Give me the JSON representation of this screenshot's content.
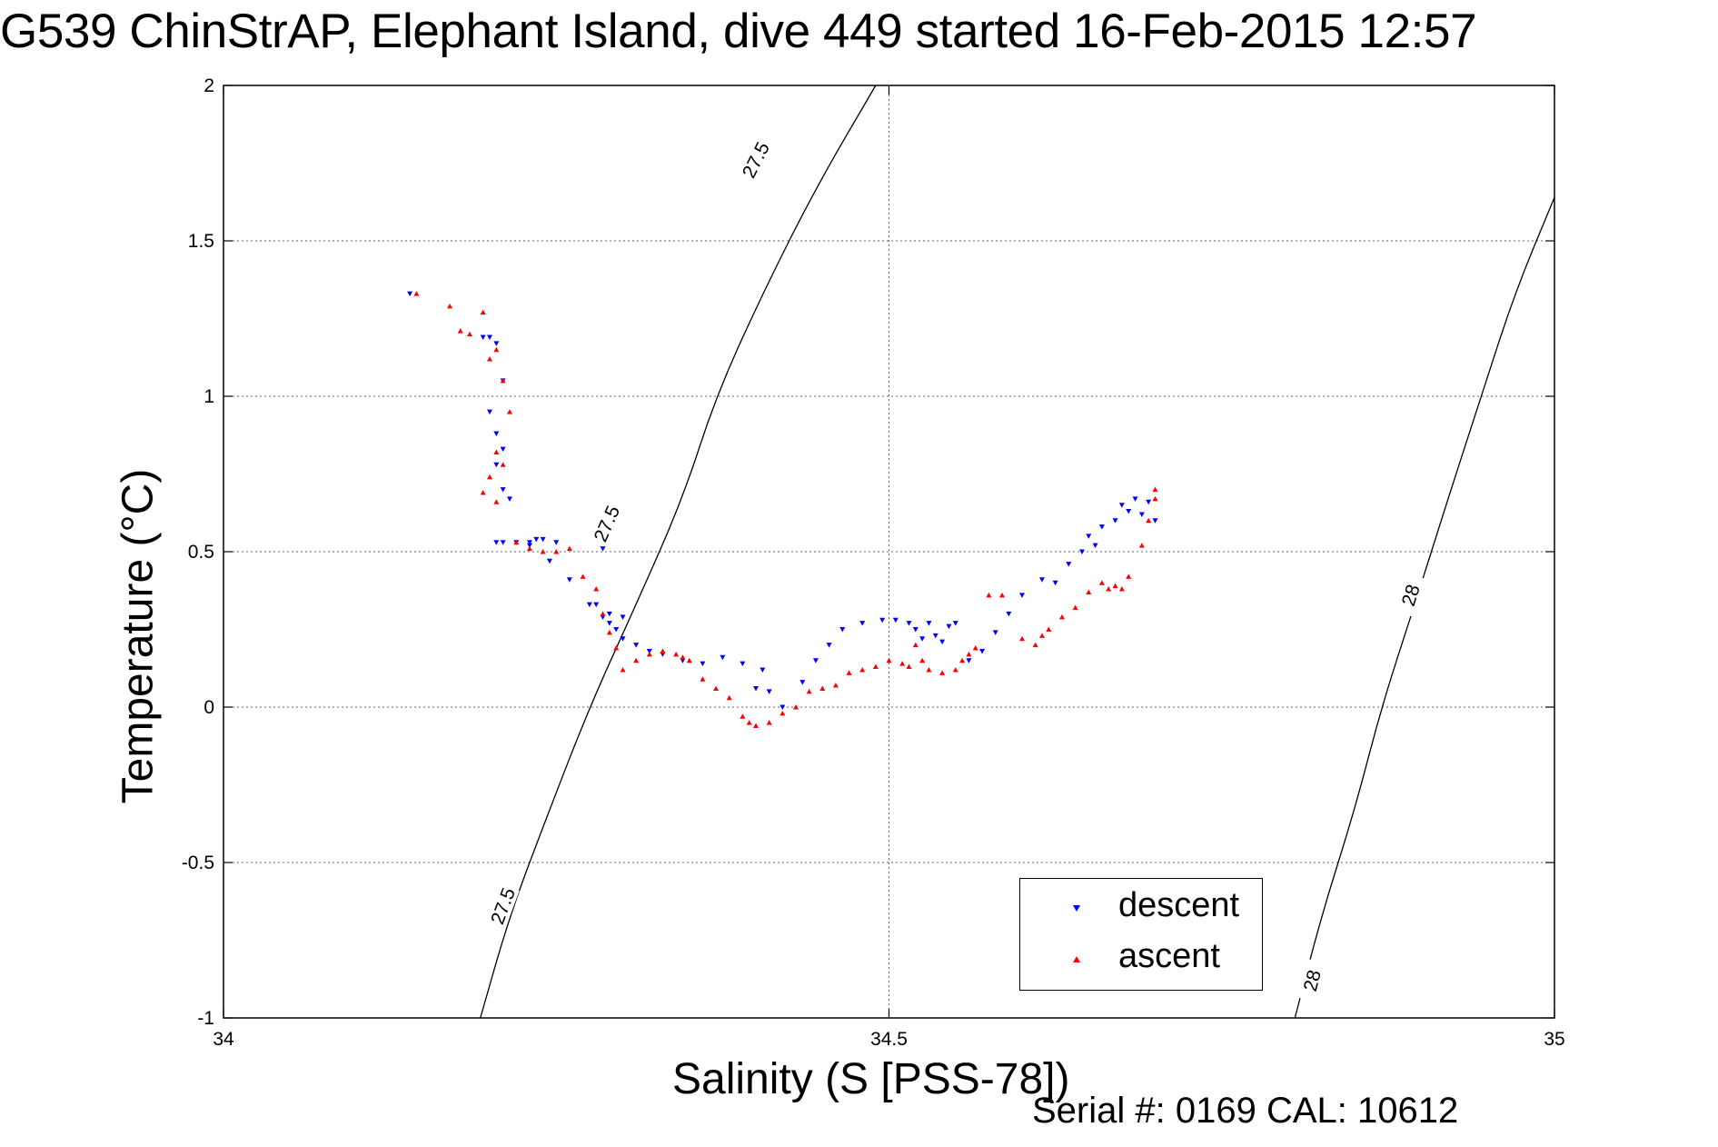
{
  "figure": {
    "title": "G539 ChinStrAP, Elephant Island, dive 449 started 16-Feb-2015 12:57",
    "serial": "Serial #: 0169 CAL: 10612"
  },
  "chart_data": {
    "type": "scatter",
    "xlabel": "Salinity (S [PSS-78])",
    "ylabel": "Temperature (°C)",
    "xlim": [
      34,
      35
    ],
    "ylim": [
      -1,
      2
    ],
    "xticks": [
      34,
      34.5,
      35
    ],
    "xtick_labels": [
      "34",
      "34.5",
      "35"
    ],
    "yticks": [
      -1,
      -0.5,
      0,
      0.5,
      1,
      1.5,
      2
    ],
    "ytick_labels": [
      "-1",
      "-0.5",
      "0",
      "0.5",
      "1",
      "1.5",
      "2"
    ],
    "grid": true,
    "legend_position": "bottom-right",
    "density_contours": [
      {
        "level": "27.5",
        "points": [
          [
            34.193,
            -1.0
          ],
          [
            34.215,
            -0.67
          ],
          [
            34.245,
            -0.33
          ],
          [
            34.275,
            0.0
          ],
          [
            34.31,
            0.33
          ],
          [
            34.345,
            0.67
          ],
          [
            34.37,
            1.0
          ],
          [
            34.405,
            1.33
          ],
          [
            34.445,
            1.67
          ],
          [
            34.49,
            2.0
          ]
        ],
        "labels": [
          {
            "x": 34.21,
            "y": -0.64
          },
          {
            "x": 34.288,
            "y": 0.59
          },
          {
            "x": 34.4,
            "y": 1.76
          }
        ]
      },
      {
        "level": "28",
        "points": [
          [
            34.805,
            -1.0
          ],
          [
            34.825,
            -0.67
          ],
          [
            34.85,
            -0.33
          ],
          [
            34.87,
            0.0
          ],
          [
            34.895,
            0.33
          ],
          [
            34.92,
            0.67
          ],
          [
            34.945,
            1.0
          ],
          [
            34.97,
            1.33
          ],
          [
            35.0,
            1.64
          ]
        ],
        "labels": [
          {
            "x": 34.818,
            "y": -0.88
          },
          {
            "x": 34.892,
            "y": 0.36
          }
        ]
      }
    ],
    "series": [
      {
        "name": "descent",
        "color": "#0000ff",
        "marker": "triangle-down",
        "x": [
          34.14,
          34.195,
          34.2,
          34.205,
          34.21,
          34.2,
          34.205,
          34.21,
          34.205,
          34.21,
          34.215,
          34.21,
          34.23,
          34.235,
          34.24,
          34.25,
          34.285,
          34.205,
          34.22,
          34.23,
          34.245,
          34.26,
          34.275,
          34.29,
          34.3,
          34.28,
          34.285,
          34.29,
          34.295,
          34.3,
          34.31,
          34.32,
          34.33,
          34.345,
          34.36,
          34.375,
          34.39,
          34.405,
          34.41,
          34.4,
          34.42,
          34.435,
          34.445,
          34.455,
          34.465,
          34.48,
          34.495,
          34.505,
          34.515,
          34.52,
          34.525,
          34.53,
          34.535,
          34.54,
          34.545,
          34.55,
          34.56,
          34.57,
          34.58,
          34.59,
          34.6,
          34.615,
          34.625,
          34.635,
          34.645,
          34.65,
          34.655,
          34.66,
          34.67,
          34.675,
          34.68,
          34.685,
          34.69,
          34.695,
          34.7
        ],
        "y": [
          1.33,
          1.19,
          1.19,
          1.17,
          1.05,
          0.95,
          0.88,
          0.83,
          0.78,
          0.7,
          0.67,
          0.53,
          0.53,
          0.54,
          0.54,
          0.53,
          0.51,
          0.53,
          0.53,
          0.52,
          0.47,
          0.41,
          0.33,
          0.3,
          0.29,
          0.33,
          0.29,
          0.27,
          0.25,
          0.22,
          0.2,
          0.18,
          0.17,
          0.15,
          0.14,
          0.16,
          0.14,
          0.12,
          0.05,
          0.06,
          0.0,
          0.08,
          0.15,
          0.2,
          0.25,
          0.27,
          0.28,
          0.28,
          0.27,
          0.25,
          0.22,
          0.27,
          0.23,
          0.21,
          0.26,
          0.27,
          0.15,
          0.18,
          0.24,
          0.3,
          0.36,
          0.41,
          0.4,
          0.46,
          0.5,
          0.55,
          0.52,
          0.58,
          0.6,
          0.65,
          0.63,
          0.67,
          0.62,
          0.66,
          0.6
        ]
      },
      {
        "name": "ascent",
        "color": "#ff0000",
        "marker": "triangle-up",
        "x": [
          34.145,
          34.17,
          34.178,
          34.185,
          34.195,
          34.2,
          34.205,
          34.21,
          34.215,
          34.205,
          34.21,
          34.2,
          34.195,
          34.205,
          34.22,
          34.23,
          34.24,
          34.25,
          34.26,
          34.27,
          34.28,
          34.285,
          34.29,
          34.295,
          34.3,
          34.31,
          34.32,
          34.33,
          34.34,
          34.345,
          34.35,
          34.36,
          34.37,
          34.38,
          34.39,
          34.395,
          34.4,
          34.41,
          34.42,
          34.43,
          34.44,
          34.45,
          34.46,
          34.47,
          34.48,
          34.49,
          34.5,
          34.51,
          34.515,
          34.52,
          34.525,
          34.53,
          34.54,
          34.55,
          34.555,
          34.56,
          34.565,
          34.575,
          34.585,
          34.6,
          34.61,
          34.615,
          34.62,
          34.63,
          34.64,
          34.65,
          34.66,
          34.665,
          34.67,
          34.675,
          34.68,
          34.69,
          34.695,
          34.7,
          34.7
        ],
        "y": [
          1.33,
          1.29,
          1.21,
          1.2,
          1.27,
          1.12,
          1.15,
          1.05,
          0.95,
          0.82,
          0.78,
          0.74,
          0.69,
          0.66,
          0.53,
          0.51,
          0.5,
          0.5,
          0.51,
          0.42,
          0.38,
          0.3,
          0.24,
          0.19,
          0.12,
          0.15,
          0.17,
          0.18,
          0.17,
          0.16,
          0.15,
          0.09,
          0.06,
          0.03,
          -0.03,
          -0.05,
          -0.06,
          -0.05,
          -0.02,
          0.0,
          0.05,
          0.06,
          0.07,
          0.11,
          0.12,
          0.13,
          0.15,
          0.14,
          0.13,
          0.2,
          0.15,
          0.12,
          0.11,
          0.12,
          0.15,
          0.17,
          0.19,
          0.36,
          0.36,
          0.22,
          0.2,
          0.23,
          0.25,
          0.29,
          0.32,
          0.37,
          0.4,
          0.38,
          0.39,
          0.38,
          0.42,
          0.52,
          0.6,
          0.67,
          0.7
        ]
      }
    ]
  }
}
